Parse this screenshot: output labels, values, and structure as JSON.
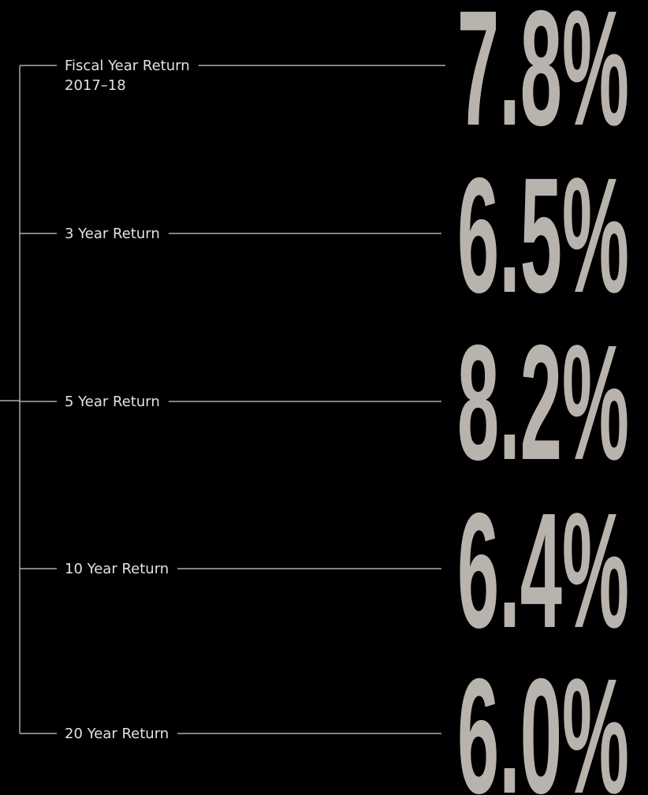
{
  "items": [
    {
      "label": "Fiscal Year Return",
      "sublabel": "2017–18",
      "value": "7.8%"
    },
    {
      "label": "3 Year Return",
      "value": "6.5%"
    },
    {
      "label": "5 Year Return",
      "value": "8.2%"
    },
    {
      "label": "10 Year Return",
      "value": "6.4%"
    },
    {
      "label": "20 Year Return",
      "value": "6.0%"
    }
  ]
}
